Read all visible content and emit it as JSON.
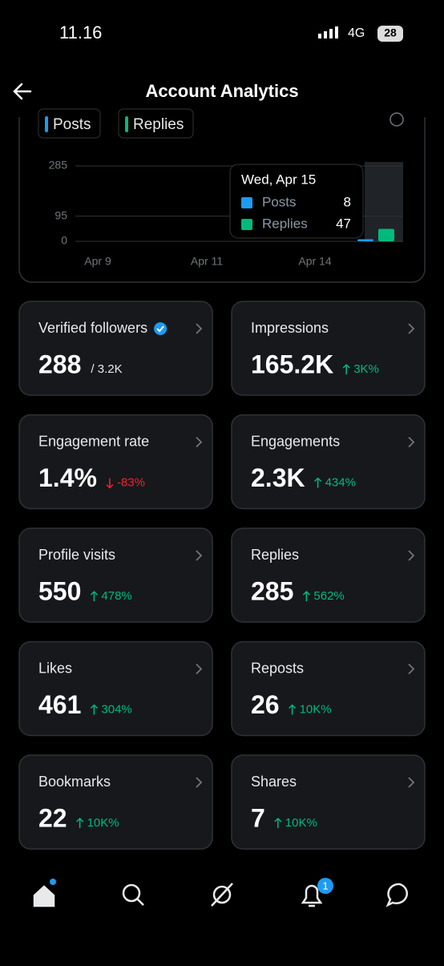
{
  "status_bar": {
    "time": "11.16",
    "network": "4G",
    "battery": "28"
  },
  "header": {
    "title": "Account Analytics"
  },
  "chart": {
    "legend": [
      "Posts",
      "Replies"
    ],
    "ylim": [
      0,
      285
    ],
    "yticks": [
      285,
      95,
      0
    ],
    "x_labels": [
      "Apr 9",
      "Apr 11",
      "Apr 14"
    ],
    "tooltip": {
      "date": "Wed, Apr 15",
      "series": [
        {
          "name": "Posts",
          "color": "#1d9bf0",
          "value": 8
        },
        {
          "name": "Replies",
          "color": "#00ba7c",
          "value": 47
        }
      ]
    }
  },
  "cards": [
    {
      "label": "Verified followers",
      "value": "288",
      "secondary": "/ 3.2K"
    },
    {
      "label": "Impressions",
      "value": "165.2K",
      "change": "3K%",
      "direction": "up"
    },
    {
      "label": "Engagement rate",
      "value": "1.4%",
      "change": "-83%",
      "direction": "down"
    },
    {
      "label": "Engagements",
      "value": "2.3K",
      "change": "434%",
      "direction": "up"
    },
    {
      "label": "Profile visits",
      "value": "550",
      "change": "478%",
      "direction": "up"
    },
    {
      "label": "Replies",
      "value": "285",
      "change": "562%",
      "direction": "up"
    },
    {
      "label": "Likes",
      "value": "461",
      "change": "304%",
      "direction": "up"
    },
    {
      "label": "Reposts",
      "value": "26",
      "change": "10K%",
      "direction": "up"
    },
    {
      "label": "Bookmarks",
      "value": "22",
      "change": "10K%",
      "direction": "up"
    },
    {
      "label": "Shares",
      "value": "7",
      "change": "10K%",
      "direction": "up"
    }
  ],
  "nav": {
    "notification_count": "1"
  }
}
